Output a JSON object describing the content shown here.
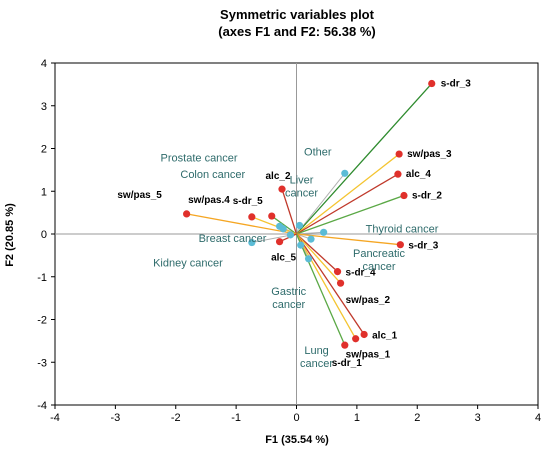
{
  "chart_data": {
    "type": "scatter",
    "title": "Symmetric variables plot",
    "subtitle": "(axes F1 and F2: 56.38 %)",
    "xlabel": "F1 (35.54 %)",
    "ylabel": "F2 (20.85 %)",
    "xlim": [
      -4,
      4
    ],
    "ylim": [
      -4,
      4
    ],
    "xticks": [
      "-4",
      "-3",
      "-2",
      "-1",
      "0",
      "1",
      "2",
      "3",
      "4"
    ],
    "yticks": [
      "-4",
      "-3",
      "-2",
      "-1",
      "0",
      "1",
      "2",
      "3",
      "4"
    ],
    "grid": false,
    "exposure_color": "#e0302b",
    "cancer_color": "#5bbcd6",
    "cancer_label_color": "#2e6b6b",
    "exposures": [
      {
        "label": "s-dr_3",
        "x": 2.24,
        "y": 3.52,
        "color": "#2e8b2e"
      },
      {
        "label": "sw/pas_3",
        "x": 1.7,
        "y": 1.87,
        "color": "#f4c430"
      },
      {
        "label": "alc_4",
        "x": 1.68,
        "y": 1.4,
        "color": "#c0392b"
      },
      {
        "label": "s-dr_2",
        "x": 1.78,
        "y": 0.9,
        "color": "#5aa845"
      },
      {
        "label": "s-dr_3",
        "x": 1.72,
        "y": -0.25,
        "color": "#f5a623"
      },
      {
        "label": "s-dr_4",
        "x": 0.68,
        "y": -0.88,
        "color": "#c0392b"
      },
      {
        "label": "sw/pas_2",
        "x": 0.73,
        "y": -1.15,
        "color": "#f4c430"
      },
      {
        "label": "alc_1",
        "x": 1.12,
        "y": -2.35,
        "color": "#c0392b"
      },
      {
        "label": "sw/pas_1",
        "x": 0.98,
        "y": -2.45,
        "color": "#f4c430"
      },
      {
        "label": "s-dr_1",
        "x": 0.8,
        "y": -2.6,
        "color": "#5aa845"
      },
      {
        "label": "alc_2",
        "x": -0.24,
        "y": 1.05,
        "color": "#c0392b"
      },
      {
        "label": "s-dr_5",
        "x": -0.41,
        "y": 0.42,
        "color": "#5aa845"
      },
      {
        "label": "sw/pas.4",
        "x": -0.74,
        "y": 0.4,
        "color": "#f4c430"
      },
      {
        "label": "sw/pas_5",
        "x": -1.82,
        "y": 0.47,
        "color": "#f5a623"
      },
      {
        "label": "alc_5",
        "x": -0.28,
        "y": -0.18,
        "color": "#c0392b"
      }
    ],
    "cancers": [
      {
        "label": "Other",
        "x": 0.8,
        "y": 1.42
      },
      {
        "label": "Liver cancer",
        "x": 0.05,
        "y": 0.2
      },
      {
        "label": "Prostate cancer",
        "x": -0.28,
        "y": 0.18
      },
      {
        "label": "Colon cancer",
        "x": -0.22,
        "y": 0.12
      },
      {
        "label": "Thyroid cancer",
        "x": 0.45,
        "y": 0.04
      },
      {
        "label": "Pancreatic cancer",
        "x": 0.24,
        "y": -0.12
      },
      {
        "label": "Breast cancer",
        "x": -0.1,
        "y": -0.02
      },
      {
        "label": "Kidney cancer",
        "x": -0.74,
        "y": -0.2
      },
      {
        "label": "Gastric cancer",
        "x": 0.07,
        "y": -0.26
      },
      {
        "label": "Lung cancer",
        "x": 0.2,
        "y": -0.58
      }
    ]
  }
}
